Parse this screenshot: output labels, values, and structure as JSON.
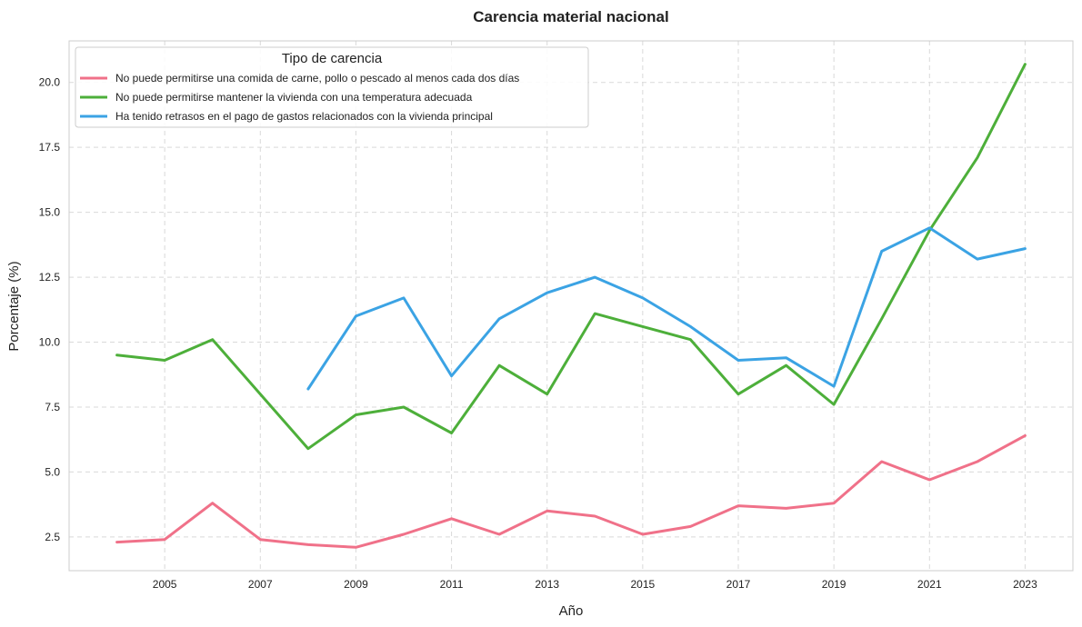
{
  "chart_data": {
    "type": "line",
    "title": "Carencia material nacional",
    "xlabel": "Año",
    "ylabel": "Porcentaje (%)",
    "legend_title": "Tipo de carencia",
    "legend_position": "top-left",
    "grid": true,
    "grid_style": "dashed",
    "xlim": [
      2003,
      2024
    ],
    "ylim": [
      1.2,
      21.6
    ],
    "x_ticks": [
      2005,
      2007,
      2009,
      2011,
      2013,
      2015,
      2017,
      2019,
      2021,
      2023
    ],
    "y_ticks": [
      2.5,
      5.0,
      7.5,
      10.0,
      12.5,
      15.0,
      17.5,
      20.0
    ],
    "y_tick_labels": [
      "2.5",
      "5.0",
      "7.5",
      "10.0",
      "12.5",
      "15.0",
      "17.5",
      "20.0"
    ],
    "series": [
      {
        "name": "No puede permitirse una comida de carne, pollo o pescado al menos cada dos días",
        "color": "#f07189",
        "x": [
          2004,
          2005,
          2006,
          2007,
          2008,
          2009,
          2010,
          2011,
          2012,
          2013,
          2014,
          2015,
          2016,
          2017,
          2018,
          2019,
          2020,
          2021,
          2022,
          2023
        ],
        "values": [
          2.3,
          2.4,
          3.8,
          2.4,
          2.2,
          2.1,
          2.6,
          3.2,
          2.6,
          3.5,
          3.3,
          2.6,
          2.9,
          3.7,
          3.6,
          3.8,
          5.4,
          4.7,
          5.4,
          6.4
        ]
      },
      {
        "name": "No puede permitirse mantener la vivienda con una temperatura adecuada",
        "color": "#4daf3a",
        "x": [
          2004,
          2005,
          2006,
          2007,
          2008,
          2009,
          2010,
          2011,
          2012,
          2013,
          2014,
          2015,
          2016,
          2017,
          2018,
          2019,
          2020,
          2021,
          2022,
          2023
        ],
        "values": [
          9.5,
          9.3,
          10.1,
          8.0,
          5.9,
          7.2,
          7.5,
          6.5,
          9.1,
          8.0,
          11.1,
          10.6,
          10.1,
          8.0,
          9.1,
          7.6,
          10.9,
          14.3,
          17.1,
          20.7
        ]
      },
      {
        "name": "Ha tenido retrasos en el pago de gastos relacionados con la vivienda principal",
        "color": "#3ba3e4",
        "x": [
          2008,
          2009,
          2010,
          2011,
          2012,
          2013,
          2014,
          2015,
          2016,
          2017,
          2018,
          2019,
          2020,
          2021,
          2022,
          2023
        ],
        "values": [
          8.2,
          11.0,
          11.7,
          8.7,
          10.9,
          11.9,
          12.5,
          11.7,
          10.6,
          9.3,
          9.4,
          8.3,
          13.5,
          14.4,
          13.2,
          13.6
        ]
      }
    ]
  }
}
